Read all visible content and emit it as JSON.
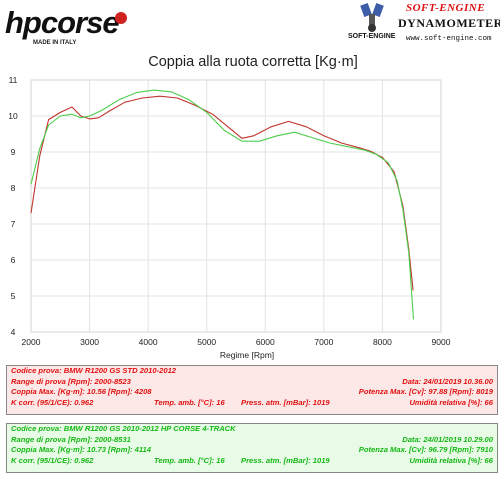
{
  "header": {
    "hp_brand": "hpcorse",
    "hp_tagline": "MADE IN ITALY",
    "se_name": "SOFT-ENGINE",
    "se_dyno": "DYNAMOMETERS",
    "se_url": "www.soft-engine.com",
    "se_small": "SOFT-ENGINE"
  },
  "colors": {
    "series_red": "#c0342e",
    "series_green": "#4ccd4c",
    "info_red_text": "#e01010",
    "info_green_text": "#14b814"
  },
  "chart_data": {
    "type": "line",
    "title": "Coppia alla ruota corretta [Kg·m]",
    "xlabel": "Regime [Rpm]",
    "ylabel": "",
    "xlim": [
      2000,
      9000
    ],
    "ylim": [
      4,
      11
    ],
    "xticks": [
      2000,
      3000,
      4000,
      5000,
      6000,
      7000,
      8000,
      9000
    ],
    "yticks": [
      4,
      5,
      6,
      7,
      8,
      9,
      10,
      11
    ],
    "grid": true,
    "legend": "none",
    "series": [
      {
        "color": "#c0342e",
        "points": [
          [
            2000,
            7.3
          ],
          [
            2150,
            8.9
          ],
          [
            2300,
            9.9
          ],
          [
            2500,
            10.1
          ],
          [
            2700,
            10.25
          ],
          [
            2850,
            10.0
          ],
          [
            3000,
            9.92
          ],
          [
            3150,
            9.95
          ],
          [
            3350,
            10.15
          ],
          [
            3600,
            10.38
          ],
          [
            3900,
            10.5
          ],
          [
            4200,
            10.55
          ],
          [
            4500,
            10.5
          ],
          [
            4800,
            10.3
          ],
          [
            5100,
            10.05
          ],
          [
            5400,
            9.65
          ],
          [
            5600,
            9.38
          ],
          [
            5800,
            9.45
          ],
          [
            6100,
            9.7
          ],
          [
            6400,
            9.85
          ],
          [
            6700,
            9.7
          ],
          [
            7000,
            9.45
          ],
          [
            7300,
            9.25
          ],
          [
            7600,
            9.12
          ],
          [
            7800,
            9.02
          ],
          [
            8000,
            8.85
          ],
          [
            8200,
            8.45
          ],
          [
            8350,
            7.5
          ],
          [
            8450,
            6.3
          ],
          [
            8523,
            5.15
          ]
        ]
      },
      {
        "color": "#4ccd4c",
        "points": [
          [
            2000,
            8.1
          ],
          [
            2150,
            9.1
          ],
          [
            2300,
            9.75
          ],
          [
            2500,
            10.0
          ],
          [
            2700,
            10.05
          ],
          [
            2850,
            9.95
          ],
          [
            3000,
            10.0
          ],
          [
            3200,
            10.15
          ],
          [
            3500,
            10.45
          ],
          [
            3800,
            10.65
          ],
          [
            4100,
            10.72
          ],
          [
            4400,
            10.67
          ],
          [
            4700,
            10.45
          ],
          [
            5000,
            10.1
          ],
          [
            5300,
            9.6
          ],
          [
            5600,
            9.3
          ],
          [
            5900,
            9.3
          ],
          [
            6200,
            9.45
          ],
          [
            6500,
            9.55
          ],
          [
            6800,
            9.4
          ],
          [
            7100,
            9.25
          ],
          [
            7400,
            9.15
          ],
          [
            7700,
            9.05
          ],
          [
            7900,
            8.93
          ],
          [
            8100,
            8.7
          ],
          [
            8250,
            8.2
          ],
          [
            8350,
            7.4
          ],
          [
            8450,
            6.2
          ],
          [
            8531,
            4.35
          ]
        ]
      }
    ]
  },
  "info1": {
    "r1a": "Codice prova: BMW R1200 GS STD   2010-2012",
    "r2a": "Range di prova [Rpm]: 2000-8523",
    "r2b": "Data: 24/01/2019   10.36.00",
    "r3a": "Coppia Max. [Kg·m]: 10.56   [Rpm]: 4208",
    "r3b": "Potenza Max. [Cv]: 97.88   [Rpm]: 8019",
    "r4a": "K corr. (95/1/CE): 0.962",
    "r4b": "Temp. amb. [°C]: 16",
    "r4c": "Press. atm. [mBar]: 1019",
    "r4d": "Umidità relativa [%]: 66"
  },
  "info2": {
    "r1a": "Codice prova: BMW R1200 GS   2010-2012 HP CORSE 4-TRACK",
    "r2a": "Range di prova [Rpm]: 2000-8531",
    "r2b": "Data: 24/01/2019   10.29.00",
    "r3a": "Coppia Max. [Kg·m]: 10.73   [Rpm]: 4114",
    "r3b": "Potenza Max. [Cv]: 96.79   [Rpm]: 7910",
    "r4a": "K corr. (95/1/CE): 0.962",
    "r4b": "Temp. amb. [°C]: 16",
    "r4c": "Press. atm. [mBar]: 1019",
    "r4d": "Umidità relativa [%]: 66"
  }
}
